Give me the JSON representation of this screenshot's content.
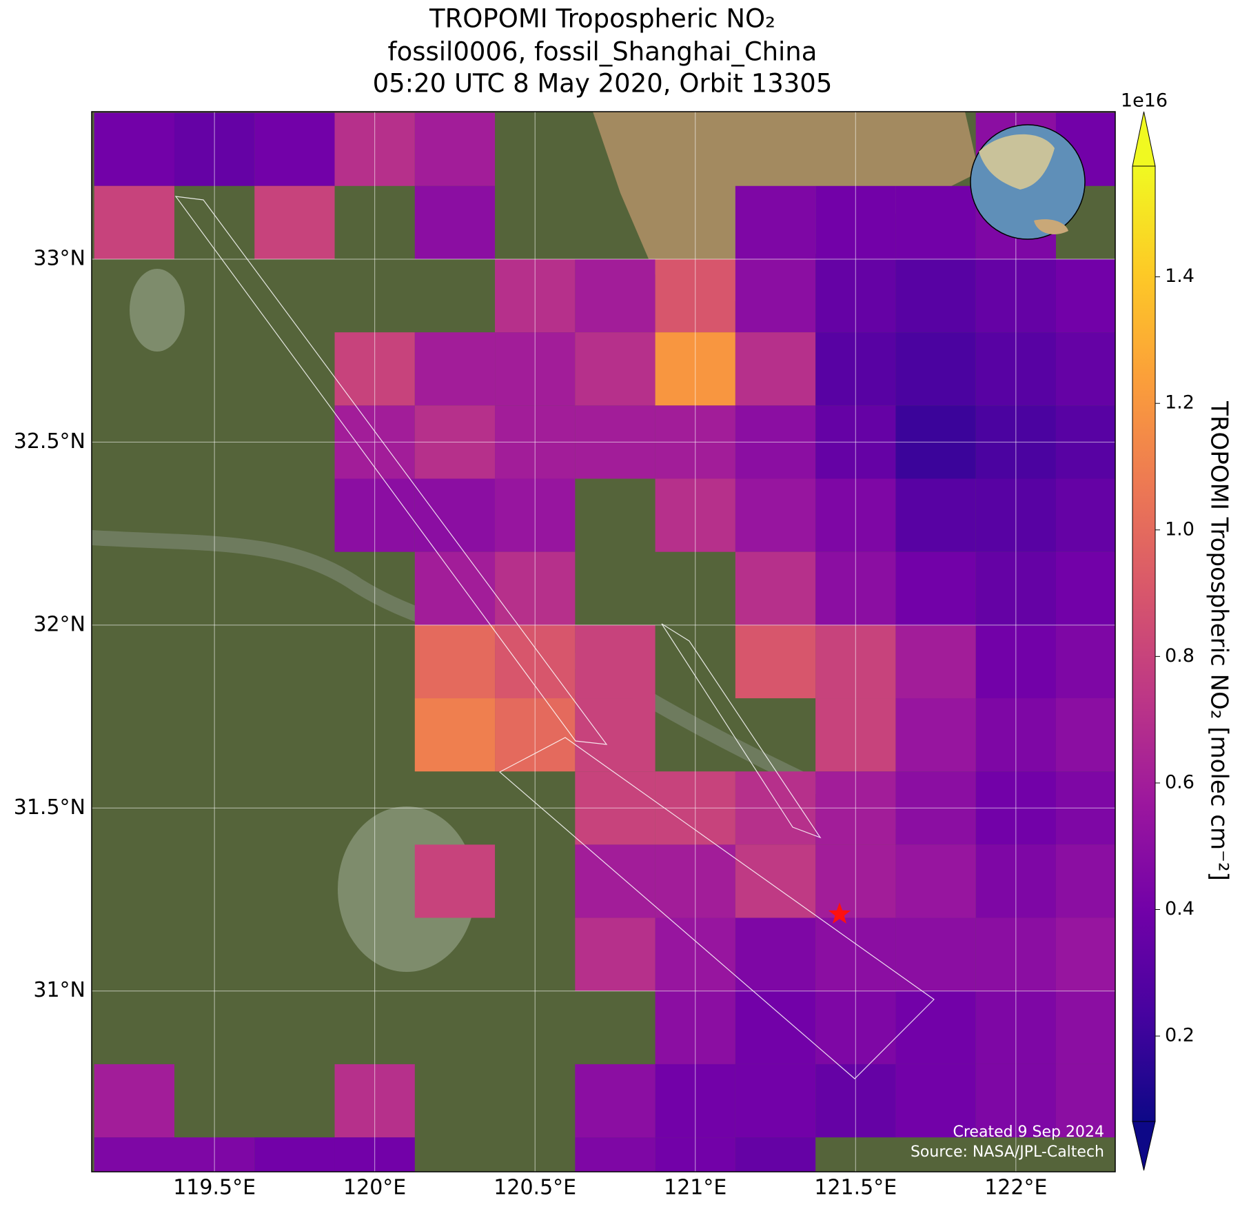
{
  "chart_data": {
    "type": "heatmap",
    "title": [
      "TROPOMI Tropospheric NO₂",
      "fossil0006, fossil_Shanghai_China",
      "05:20 UTC 8 May 2020, Orbit 13305"
    ],
    "xlim": [
      119.117,
      122.31
    ],
    "ylim": [
      30.506,
      33.403
    ],
    "xticks": [
      {
        "value": 119.5,
        "label": "119.5°E"
      },
      {
        "value": 120,
        "label": "120°E"
      },
      {
        "value": 120.5,
        "label": "120.5°E"
      },
      {
        "value": 121,
        "label": "121°E"
      },
      {
        "value": 121.5,
        "label": "121.5°E"
      },
      {
        "value": 122,
        "label": "122°E"
      }
    ],
    "yticks": [
      {
        "value": 31,
        "label": "31°N"
      },
      {
        "value": 31.5,
        "label": "31.5°N"
      },
      {
        "value": 32,
        "label": "32°N"
      },
      {
        "value": 32.5,
        "label": "32.5°N"
      },
      {
        "value": 33,
        "label": "33°N"
      }
    ],
    "grid": true,
    "x": [
      119.25,
      119.5,
      119.75,
      120,
      120.25,
      120.5,
      120.75,
      121,
      121.25,
      121.5,
      121.75,
      122,
      122.25
    ],
    "y": [
      33.3,
      33.1,
      32.9,
      32.7,
      32.5,
      32.3,
      32.1,
      31.9,
      31.7,
      31.5,
      31.3,
      31.1,
      30.9,
      30.7,
      30.5
    ],
    "z": [
      [
        0.4,
        0.35,
        0.4,
        0.7,
        0.6,
        null,
        null,
        null,
        null,
        null,
        null,
        0.5,
        0.4
      ],
      [
        0.8,
        null,
        0.8,
        null,
        0.5,
        null,
        null,
        null,
        0.45,
        0.4,
        0.4,
        0.45,
        null
      ],
      [
        null,
        null,
        null,
        null,
        null,
        0.7,
        0.6,
        0.9,
        0.5,
        0.35,
        0.3,
        0.35,
        0.4
      ],
      [
        null,
        null,
        null,
        0.8,
        0.6,
        0.6,
        0.7,
        1.2,
        0.7,
        0.3,
        0.25,
        0.3,
        0.35
      ],
      [
        null,
        null,
        null,
        0.6,
        0.7,
        0.6,
        0.6,
        0.6,
        0.5,
        0.35,
        0.2,
        0.25,
        0.3
      ],
      [
        null,
        null,
        null,
        0.5,
        0.5,
        0.55,
        null,
        0.7,
        0.55,
        0.45,
        0.3,
        0.3,
        0.35
      ],
      [
        null,
        null,
        null,
        null,
        0.6,
        0.7,
        null,
        null,
        0.7,
        0.5,
        0.4,
        0.35,
        0.4
      ],
      [
        null,
        null,
        null,
        null,
        1.0,
        0.9,
        0.8,
        null,
        0.9,
        0.8,
        0.6,
        0.4,
        0.45
      ],
      [
        null,
        null,
        null,
        null,
        1.1,
        1.0,
        0.8,
        null,
        null,
        0.8,
        0.55,
        0.45,
        0.5
      ],
      [
        null,
        null,
        null,
        null,
        null,
        null,
        0.8,
        0.8,
        0.7,
        0.6,
        0.5,
        0.4,
        0.45
      ],
      [
        null,
        null,
        null,
        null,
        0.8,
        null,
        0.6,
        0.6,
        0.75,
        0.6,
        0.55,
        0.45,
        0.5
      ],
      [
        null,
        null,
        null,
        null,
        null,
        null,
        0.7,
        0.55,
        0.45,
        0.5,
        0.5,
        0.5,
        0.55
      ],
      [
        null,
        null,
        null,
        null,
        null,
        null,
        null,
        0.5,
        0.4,
        0.45,
        0.4,
        0.45,
        0.5
      ],
      [
        0.6,
        null,
        null,
        0.7,
        null,
        null,
        0.5,
        0.4,
        0.4,
        0.35,
        0.4,
        0.45,
        0.5
      ],
      [
        0.45,
        0.45,
        0.4,
        0.4,
        null,
        null,
        0.45,
        0.4,
        0.35,
        null,
        null,
        null,
        null
      ]
    ],
    "marker": {
      "x": 121.45,
      "y": 31.21,
      "color": "#ff1010"
    },
    "colormap": [
      "#0d0887",
      "#46039f",
      "#7201a8",
      "#9c179e",
      "#bd3786",
      "#d8576b",
      "#ed7953",
      "#fb9f3a",
      "#fdca26",
      "#f0f921"
    ],
    "colorbar": {
      "label": "TROPOMI Tropospheric NO₂ [molec cm⁻²]",
      "offset_label": "1e16",
      "lim": [
        0.065,
        1.575
      ],
      "ticks": [
        0.2,
        0.4,
        0.6,
        0.8,
        {
          "value": 1,
          "label": "1.0"
        },
        1.2,
        1.4
      ],
      "extend": "both"
    },
    "credits": [
      "Created 9 Sep 2024",
      "Source: NASA/JPL-Caltech"
    ]
  }
}
